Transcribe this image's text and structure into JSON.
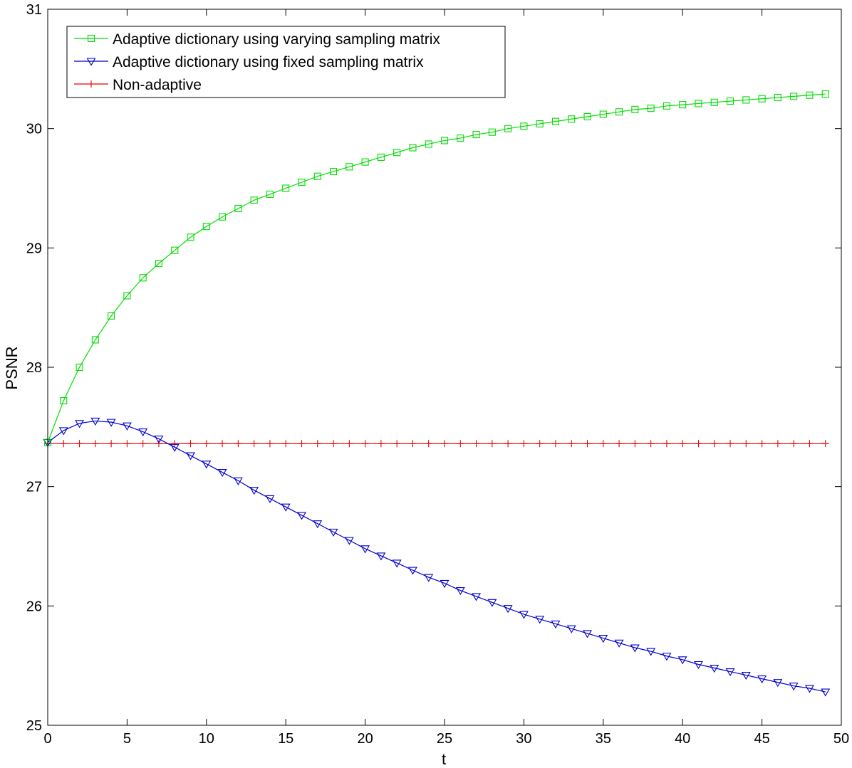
{
  "chart_data": {
    "type": "line",
    "title": "",
    "xlabel": "t",
    "ylabel": "PSNR",
    "xlim": [
      0,
      50
    ],
    "ylim": [
      25,
      31
    ],
    "xticks": [
      0,
      5,
      10,
      15,
      20,
      25,
      30,
      35,
      40,
      45,
      50
    ],
    "yticks": [
      25,
      26,
      27,
      28,
      29,
      30,
      31
    ],
    "grid": false,
    "legend_position": "top-left",
    "x": [
      0,
      1,
      2,
      3,
      4,
      5,
      6,
      7,
      8,
      9,
      10,
      11,
      12,
      13,
      14,
      15,
      16,
      17,
      18,
      19,
      20,
      21,
      22,
      23,
      24,
      25,
      26,
      27,
      28,
      29,
      30,
      31,
      32,
      33,
      34,
      35,
      36,
      37,
      38,
      39,
      40,
      41,
      42,
      43,
      44,
      45,
      46,
      47,
      48,
      49
    ],
    "series": [
      {
        "name": "Adaptive dictionary using varying sampling matrix",
        "color": "#00dd00",
        "marker": "square",
        "values": [
          27.37,
          27.72,
          28.0,
          28.23,
          28.43,
          28.6,
          28.75,
          28.87,
          28.98,
          29.09,
          29.18,
          29.26,
          29.33,
          29.4,
          29.45,
          29.5,
          29.55,
          29.6,
          29.64,
          29.68,
          29.72,
          29.76,
          29.8,
          29.84,
          29.87,
          29.9,
          29.92,
          29.95,
          29.97,
          30.0,
          30.02,
          30.04,
          30.06,
          30.08,
          30.1,
          30.12,
          30.14,
          30.16,
          30.17,
          30.19,
          30.2,
          30.21,
          30.22,
          30.23,
          30.24,
          30.25,
          30.26,
          30.27,
          30.28,
          30.29
        ]
      },
      {
        "name": "Adaptive dictionary using fixed sampling matrix",
        "color": "#0000cc",
        "marker": "triangle-down",
        "values": [
          27.37,
          27.47,
          27.53,
          27.55,
          27.54,
          27.51,
          27.46,
          27.4,
          27.33,
          27.26,
          27.19,
          27.12,
          27.05,
          26.97,
          26.9,
          26.83,
          26.76,
          26.69,
          26.62,
          26.55,
          26.48,
          26.42,
          26.36,
          26.3,
          26.24,
          26.19,
          26.13,
          26.08,
          26.03,
          25.98,
          25.93,
          25.89,
          25.85,
          25.81,
          25.77,
          25.73,
          25.69,
          25.65,
          25.62,
          25.58,
          25.55,
          25.51,
          25.48,
          25.45,
          25.42,
          25.39,
          25.36,
          25.33,
          25.31,
          25.28
        ]
      },
      {
        "name": "Non-adaptive",
        "color": "#ee0000",
        "marker": "plus",
        "values": [
          27.36,
          27.36,
          27.36,
          27.36,
          27.36,
          27.36,
          27.36,
          27.36,
          27.36,
          27.36,
          27.36,
          27.36,
          27.36,
          27.36,
          27.36,
          27.36,
          27.36,
          27.36,
          27.36,
          27.36,
          27.36,
          27.36,
          27.36,
          27.36,
          27.36,
          27.36,
          27.36,
          27.36,
          27.36,
          27.36,
          27.36,
          27.36,
          27.36,
          27.36,
          27.36,
          27.36,
          27.36,
          27.36,
          27.36,
          27.36,
          27.36,
          27.36,
          27.36,
          27.36,
          27.36,
          27.36,
          27.36,
          27.36,
          27.36,
          27.36
        ]
      }
    ]
  }
}
